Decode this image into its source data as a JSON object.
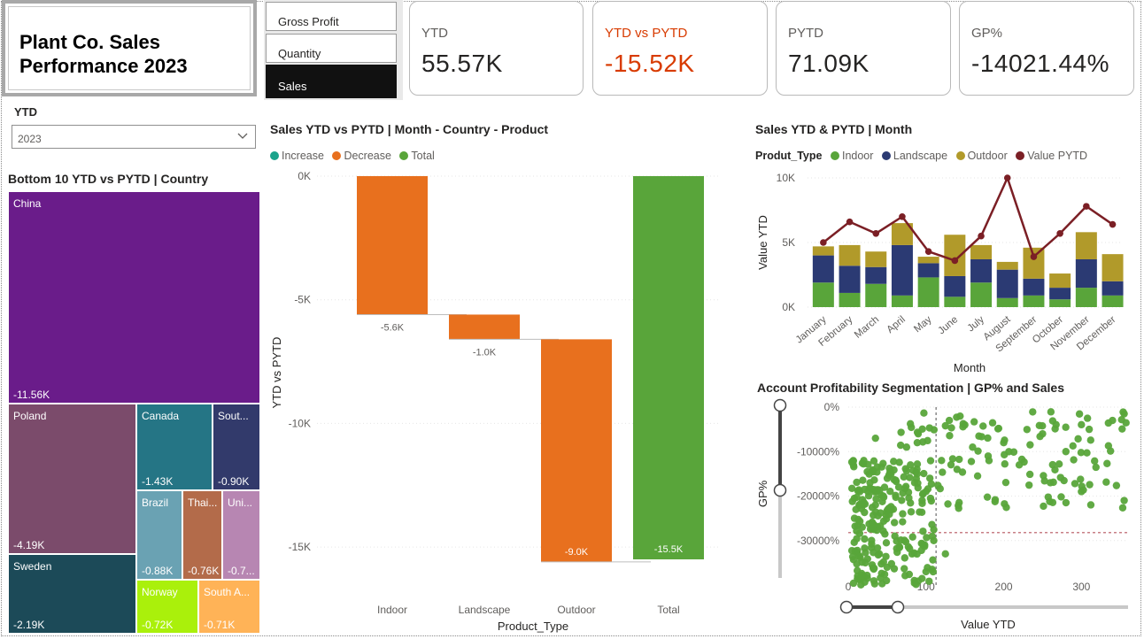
{
  "report": {
    "title": "Plant Co. Sales\nPerformance 2023"
  },
  "measure_slicer": {
    "options": [
      "Gross Profit",
      "Quantity",
      "Sales"
    ],
    "selected": "Sales"
  },
  "kpis": [
    {
      "label": "YTD",
      "value": "55.57K",
      "color": "#252423"
    },
    {
      "label": "YTD vs PYTD",
      "value": "-15.52K",
      "color": "#d83b01"
    },
    {
      "label": "PYTD",
      "value": "71.09K",
      "color": "#252423"
    },
    {
      "label": "GP%",
      "value": "-14021.44%",
      "color": "#252423"
    }
  ],
  "year_filter": {
    "label": "YTD",
    "value": "2023"
  },
  "treemap": {
    "title": "Bottom 10 YTD vs PYTD | Country",
    "cells": [
      {
        "name": "China",
        "value": "-11.56K",
        "color": "#6a1c8a"
      },
      {
        "name": "Poland",
        "value": "-4.19K",
        "color": "#7b4b6b"
      },
      {
        "name": "Canada",
        "value": "-1.43K",
        "color": "#257585"
      },
      {
        "name": "Sout...",
        "value": "-0.90K",
        "color": "#323a6b"
      },
      {
        "name": "Sweden",
        "value": "-2.19K",
        "color": "#1c4a58"
      },
      {
        "name": "Brazil",
        "value": "-0.88K",
        "color": "#6aa2b3"
      },
      {
        "name": "Thai...",
        "value": "-0.76K",
        "color": "#b36b4a"
      },
      {
        "name": "Uni...",
        "value": "-0.7...",
        "color": "#b786b2"
      },
      {
        "name": "Norway",
        "value": "-0.72K",
        "color": "#aaf00b"
      },
      {
        "name": "South A...",
        "value": "-0.71K",
        "color": "#ffb357"
      }
    ]
  },
  "waterfall": {
    "title": "Sales YTD vs PYTD | Month - Country - Product",
    "legend": [
      {
        "label": "Increase",
        "color": "#1aa38b"
      },
      {
        "label": "Decrease",
        "color": "#e8701e"
      },
      {
        "label": "Total",
        "color": "#59a53a"
      }
    ],
    "ylabel": "YTD vs PYTD",
    "xlabel": "Product_Type",
    "yticks": [
      "0K",
      "-5K",
      "-10K",
      "-15K"
    ]
  },
  "combo": {
    "title": "Sales YTD & PYTD | Month",
    "legend_title": "Produt_Type",
    "legend": [
      {
        "label": "Indoor",
        "color": "#59a53a"
      },
      {
        "label": "Landscape",
        "color": "#2b3a73"
      },
      {
        "label": "Outdoor",
        "color": "#b19a2a"
      },
      {
        "label": "Value PYTD",
        "color": "#7b1f25"
      }
    ],
    "ylabel": "Value YTD",
    "xlabel": "Month",
    "yticks": [
      "10K",
      "5K",
      "0K"
    ]
  },
  "scatter": {
    "title": "Account Profitability Segmentation | GP% and Sales",
    "ylabel": "GP%",
    "xlabel": "Value YTD",
    "yticks": [
      "0%",
      "-10000%",
      "-20000%",
      "-30000%"
    ],
    "xticks": [
      "0",
      "100",
      "200",
      "300"
    ],
    "color": "#59a53a"
  },
  "chart_data": [
    {
      "type": "bar",
      "title": "Sales YTD vs PYTD | Month - Country - Product",
      "subtype": "waterfall",
      "categories": [
        "Indoor",
        "Landscape",
        "Outdoor",
        "Total"
      ],
      "values": [
        -5.6,
        -1.0,
        -9.0,
        -15.5
      ],
      "data_labels": [
        "-5.6K",
        "-1.0K",
        "-9.0K",
        "-15.5K"
      ],
      "kinds": [
        "decrease",
        "decrease",
        "decrease",
        "total"
      ],
      "xlabel": "Product_Type",
      "ylabel": "YTD vs PYTD",
      "ylim": [
        -16,
        0
      ],
      "grid": true,
      "legend": "top-left"
    },
    {
      "type": "bar",
      "title": "Sales YTD & PYTD | Month",
      "subtype": "stacked-bar-with-line",
      "categories": [
        "January",
        "February",
        "March",
        "April",
        "May",
        "June",
        "July",
        "August",
        "September",
        "October",
        "November",
        "December"
      ],
      "series": [
        {
          "name": "Indoor",
          "values": [
            1.9,
            1.1,
            1.8,
            0.9,
            2.3,
            0.8,
            1.9,
            0.7,
            0.9,
            0.6,
            1.5,
            0.9
          ]
        },
        {
          "name": "Landscape",
          "values": [
            2.1,
            2.1,
            1.3,
            3.9,
            1.1,
            1.6,
            1.8,
            2.2,
            1.3,
            0.9,
            2.2,
            1.1
          ]
        },
        {
          "name": "Outdoor",
          "values": [
            0.7,
            1.6,
            1.2,
            1.7,
            0.5,
            3.2,
            1.1,
            0.6,
            2.4,
            1.1,
            2.1,
            2.1
          ]
        },
        {
          "name": "Value PYTD",
          "values": [
            5.0,
            6.6,
            5.7,
            7.0,
            4.3,
            3.6,
            5.5,
            10.0,
            3.9,
            5.7,
            7.8,
            6.4
          ]
        }
      ],
      "xlabel": "Month",
      "ylabel": "Value YTD",
      "ylim": [
        0,
        10
      ],
      "legend": "top-left"
    },
    {
      "type": "scatter",
      "title": "Account Profitability Segmentation | GP% and Sales",
      "xlabel": "Value YTD",
      "ylabel": "GP%",
      "xlim": [
        0,
        360
      ],
      "ylim": [
        -40000,
        0
      ],
      "reference_lines": {
        "x": 113,
        "y": -28200
      },
      "points_note": "Several hundred account points, densest near x 0–110 and y -15000% to -40000%",
      "sample": [
        [
          12,
          -38000
        ],
        [
          22,
          -35000
        ],
        [
          30,
          -30000
        ],
        [
          40,
          -33000
        ],
        [
          8,
          -25000
        ],
        [
          18,
          -27000
        ],
        [
          35,
          -22000
        ],
        [
          50,
          -36000
        ],
        [
          60,
          -29000
        ],
        [
          70,
          -24000
        ],
        [
          15,
          -19000
        ],
        [
          28,
          -17000
        ],
        [
          45,
          -20000
        ],
        [
          55,
          -15000
        ],
        [
          65,
          -18000
        ],
        [
          80,
          -13000
        ],
        [
          95,
          -21000
        ],
        [
          105,
          -16000
        ],
        [
          120,
          -12000
        ],
        [
          140,
          -14000
        ],
        [
          160,
          -9000
        ],
        [
          180,
          -11000
        ],
        [
          200,
          -8000
        ],
        [
          220,
          -13000
        ],
        [
          250,
          -6000
        ],
        [
          280,
          -10000
        ],
        [
          310,
          -5000
        ],
        [
          340,
          -3000
        ],
        [
          130,
          -3000
        ],
        [
          150,
          -4000
        ],
        [
          90,
          -6000
        ],
        [
          75,
          -9000
        ],
        [
          35,
          -7000
        ],
        [
          20,
          -12000
        ],
        [
          110,
          -30000
        ],
        [
          125,
          -33000
        ],
        [
          100,
          -37000
        ],
        [
          85,
          -39000
        ],
        [
          260,
          -17000
        ],
        [
          300,
          -19000
        ],
        [
          355,
          -1500
        ],
        [
          355,
          -21000
        ]
      ],
      "legend": "none"
    }
  ]
}
